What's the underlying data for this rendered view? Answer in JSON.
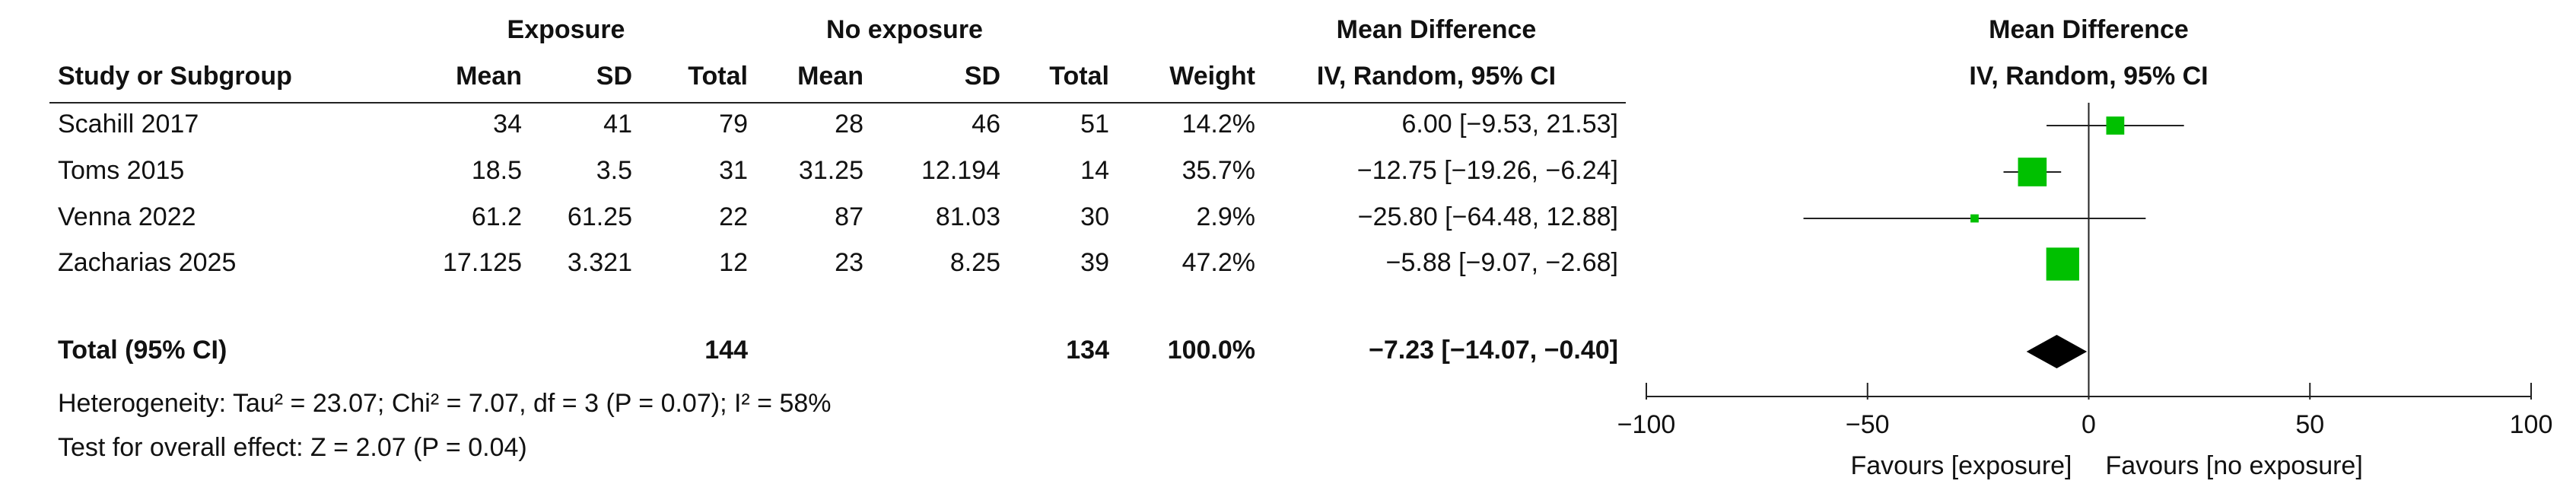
{
  "table": {
    "group_headers": [
      "Exposure",
      "No exposure",
      "Mean Difference"
    ],
    "columns": [
      "Study or Subgroup",
      "Mean",
      "SD",
      "Total",
      "Mean",
      "SD",
      "Total",
      "Weight",
      "IV, Random, 95% CI"
    ],
    "rows": [
      [
        "Scahill 2017",
        "34",
        "41",
        "79",
        "28",
        "46",
        "51",
        "14.2%",
        "6.00 [−9.53, 21.53]"
      ],
      [
        "Toms 2015",
        "18.5",
        "3.5",
        "31",
        "31.25",
        "12.194",
        "14",
        "35.7%",
        "−12.75 [−19.26, −6.24]"
      ],
      [
        "Venna 2022",
        "61.2",
        "61.25",
        "22",
        "87",
        "81.03",
        "30",
        "2.9%",
        "−25.80 [−64.48, 12.88]"
      ],
      [
        "Zacharias 2025",
        "17.125",
        "3.321",
        "12",
        "23",
        "8.25",
        "39",
        "47.2%",
        "−5.88 [−9.07, −2.68]"
      ]
    ],
    "total_row": {
      "label": "Total (95% CI)",
      "exposure_total": "144",
      "no_exposure_total": "134",
      "weight": "100.0%",
      "ci": "−7.23 [−14.07, −0.40]"
    },
    "notes": [
      "Heterogeneity: Tau² = 23.07; Chi² = 7.07, df = 3 (P = 0.07); I² = 58%",
      "Test for overall effect: Z = 2.07 (P = 0.04)"
    ]
  },
  "chart_data": {
    "type": "forest",
    "title": "Mean Difference",
    "subtitle": "IV, Random, 95% CI",
    "values": [
      6.0,
      -12.75,
      -25.8,
      -5.88
    ],
    "ci_low": [
      -9.53,
      -19.26,
      -64.48,
      -9.07
    ],
    "ci_high": [
      21.53,
      -6.24,
      12.88,
      -2.68
    ],
    "weights": [
      14.2,
      35.7,
      2.9,
      47.2
    ],
    "total": {
      "value": -7.23,
      "ci_low": -14.07,
      "ci_high": -0.4
    },
    "color": "#00c000",
    "xlim": [
      -100,
      100
    ],
    "xticks": [
      {
        "value": -100,
        "label": "−100"
      },
      {
        "value": -50,
        "label": "−50"
      },
      0,
      50,
      100
    ],
    "favours_left": "Favours [exposure]",
    "favours_right": "Favours [no exposure]"
  }
}
